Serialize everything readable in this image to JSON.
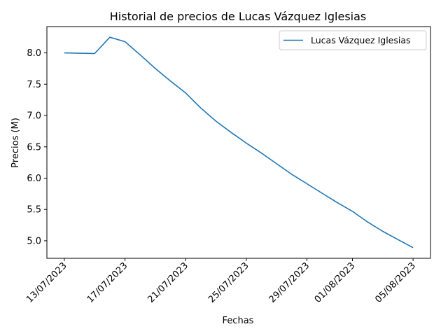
{
  "chart_data": {
    "type": "line",
    "title": "Historial de precios de Lucas Vázquez Iglesias",
    "xlabel": "Fechas",
    "ylabel": "Precios (M)",
    "x_tick_labels": [
      "13/07/2023",
      "17/07/2023",
      "21/07/2023",
      "25/07/2023",
      "29/07/2023",
      "01/08/2023",
      "05/08/2023"
    ],
    "y_tick_labels": [
      "5.0",
      "5.5",
      "6.0",
      "6.5",
      "7.0",
      "7.5",
      "8.0"
    ],
    "ylim": [
      4.72,
      8.42
    ],
    "legend": {
      "position": "top-right"
    },
    "grid": false,
    "series": [
      {
        "name": "Lucas Vázquez Iglesias",
        "color": "#1f77b4",
        "x": [
          "13/07/2023",
          "15/07/2023",
          "16/07/2023",
          "17/07/2023",
          "18/07/2023",
          "19/07/2023",
          "20/07/2023",
          "21/07/2023",
          "22/07/2023",
          "23/07/2023",
          "24/07/2023",
          "25/07/2023",
          "26/07/2023",
          "27/07/2023",
          "28/07/2023",
          "29/07/2023",
          "30/07/2023",
          "31/07/2023",
          "01/08/2023",
          "02/08/2023",
          "03/08/2023",
          "04/08/2023",
          "05/08/2023"
        ],
        "values": [
          8.0,
          7.99,
          8.25,
          8.18,
          7.97,
          7.75,
          7.55,
          7.36,
          7.12,
          6.91,
          6.73,
          6.56,
          6.4,
          6.23,
          6.06,
          5.91,
          5.76,
          5.61,
          5.47,
          5.3,
          5.15,
          5.02,
          4.89
        ]
      }
    ]
  }
}
